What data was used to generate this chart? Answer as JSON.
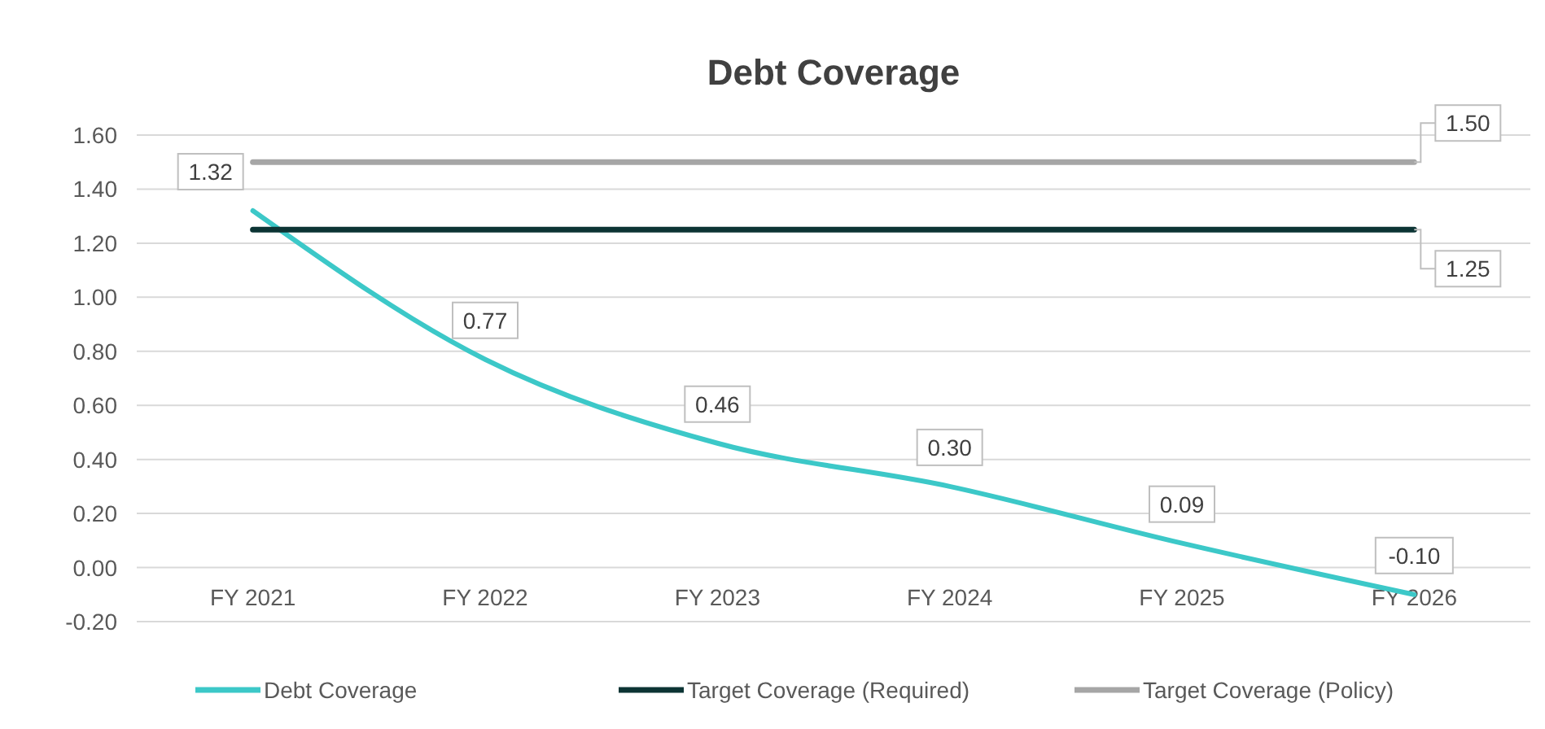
{
  "chart_data": {
    "type": "line",
    "title": "Debt Coverage",
    "categories": [
      "FY 2021",
      "FY 2022",
      "FY 2023",
      "FY 2024",
      "FY 2025",
      "FY 2026"
    ],
    "series": [
      {
        "name": "Debt Coverage",
        "color": "#3cc8c8",
        "values": [
          1.32,
          0.77,
          0.46,
          0.3,
          0.09,
          -0.1
        ],
        "value_labels": [
          "1.32",
          "0.77",
          "0.46",
          "0.30",
          "0.09",
          "-0.10"
        ]
      },
      {
        "name": "Target Coverage (Required)",
        "color": "#0c3434",
        "values": [
          1.25,
          1.25,
          1.25,
          1.25,
          1.25,
          1.25
        ],
        "value_labels": [
          null,
          null,
          null,
          null,
          null,
          "1.25"
        ]
      },
      {
        "name": "Target Coverage (Policy)",
        "color": "#a6a6a6",
        "values": [
          1.5,
          1.5,
          1.5,
          1.5,
          1.5,
          1.5
        ],
        "value_labels": [
          null,
          null,
          null,
          null,
          null,
          "1.50"
        ]
      }
    ],
    "ylim": [
      -0.2,
      1.6
    ],
    "yticks": [
      {
        "value": -0.2,
        "label": "-0.20"
      },
      {
        "value": 0,
        "label": "0.00"
      },
      {
        "value": 0.2,
        "label": "0.20"
      },
      {
        "value": 0.4,
        "label": "0.40"
      },
      {
        "value": 0.6,
        "label": "0.60"
      },
      {
        "value": 0.8,
        "label": "0.80"
      },
      {
        "value": 1,
        "label": "1.00"
      },
      {
        "value": 1.2,
        "label": "1.20"
      },
      {
        "value": 1.4,
        "label": "1.40"
      },
      {
        "value": 1.6,
        "label": "1.60"
      }
    ],
    "grid": "y",
    "legend": "bottom",
    "marker": "none",
    "line_style": "solid"
  }
}
